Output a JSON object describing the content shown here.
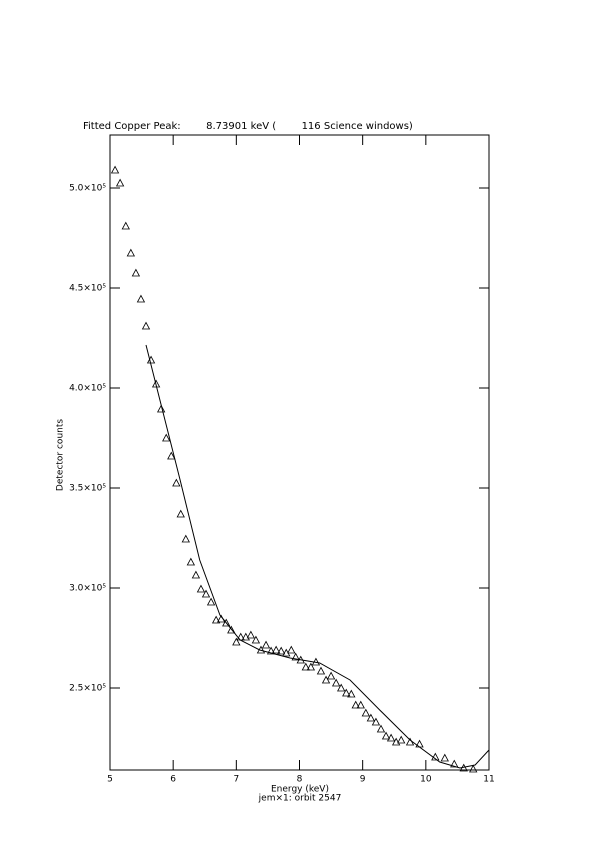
{
  "chart_data": {
    "type": "scatter",
    "title": "Fitted Copper Peak:        8.73901 keV (        116 Science windows)",
    "x_label": "Energy (keV)",
    "caption": "jem×1: orbit 2547",
    "y_label": "Detector counts",
    "xlim": [
      5,
      11
    ],
    "ylim": [
      209000,
      526500
    ],
    "xticks": [
      5,
      6,
      7,
      8,
      9,
      10,
      11
    ],
    "yticks": [
      {
        "value": 250000,
        "label": "2.5×10⁵"
      },
      {
        "value": 300000,
        "label": "3.0×10⁵"
      },
      {
        "value": 350000,
        "label": "3.5×10⁵"
      },
      {
        "value": 400000,
        "label": "4.0×10⁵"
      },
      {
        "value": 450000,
        "label": "4.5×10⁵"
      },
      {
        "value": 500000,
        "label": "5.0×10⁵"
      }
    ],
    "color": "#000000",
    "series": [
      {
        "type": "scatter",
        "x": [
          5.08,
          5.16,
          5.25,
          5.33,
          5.41,
          5.49,
          5.57,
          5.65,
          5.73,
          5.81,
          5.89,
          5.97,
          6.05,
          6.12,
          6.2,
          6.28,
          6.36,
          6.44,
          6.52,
          6.6,
          6.68,
          6.76,
          6.84,
          6.92,
          7.0,
          7.07,
          7.15,
          7.23,
          7.31,
          7.39,
          7.47,
          7.55,
          7.63,
          7.71,
          7.79,
          7.87,
          7.94,
          8.02,
          8.1,
          8.18,
          8.26,
          8.34,
          8.42,
          8.5,
          8.58,
          8.66,
          8.74,
          8.82,
          8.89,
          8.97,
          9.05,
          9.13,
          9.21,
          9.29,
          9.37,
          9.45,
          9.53,
          9.61,
          9.75,
          9.9,
          10.15,
          10.3,
          10.45,
          10.6,
          10.75
        ],
        "values": [
          509000,
          502500,
          481000,
          467500,
          457500,
          444500,
          431000,
          414000,
          402000,
          389500,
          375000,
          366000,
          352500,
          337000,
          324500,
          313000,
          306500,
          299500,
          297000,
          293000,
          284000,
          284500,
          282500,
          279000,
          273000,
          275500,
          275500,
          276500,
          274000,
          269000,
          271500,
          268500,
          269000,
          268500,
          267500,
          269000,
          265500,
          264000,
          260500,
          260500,
          263000,
          258500,
          254000,
          256000,
          252500,
          250000,
          247500,
          247000,
          241500,
          241500,
          237500,
          235000,
          233000,
          229500,
          226000,
          225000,
          223000,
          224000,
          223000,
          222000,
          215500,
          215000,
          212000,
          210000,
          209500
        ]
      },
      {
        "type": "line",
        "x": [
          5.57,
          5.79,
          6.11,
          6.42,
          6.74,
          7.06,
          7.37,
          7.85,
          8.32,
          8.8,
          9.27,
          9.75,
          10.22,
          10.54,
          10.78,
          11.0
        ],
        "values": [
          421500,
          394000,
          354000,
          314000,
          286500,
          274000,
          269000,
          265000,
          262500,
          254000,
          239000,
          224000,
          213000,
          210000,
          211500,
          219000
        ]
      }
    ]
  }
}
